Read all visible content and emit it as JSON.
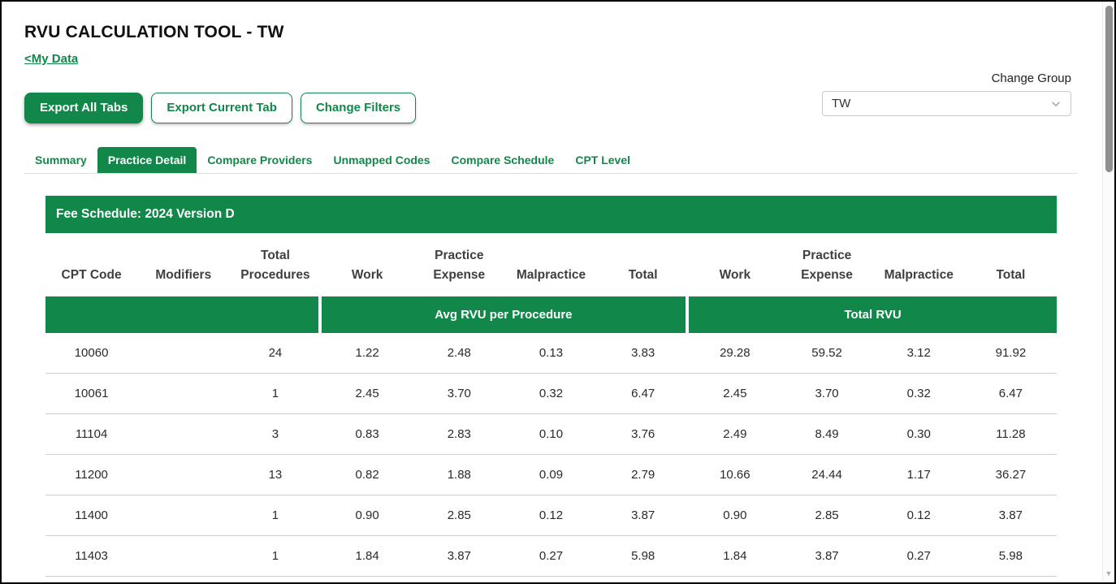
{
  "header": {
    "title": "RVU CALCULATION TOOL - TW",
    "back_link": "<My Data",
    "change_group_label": "Change Group",
    "group_select_value": "TW"
  },
  "toolbar": {
    "export_all_label": "Export All Tabs",
    "export_current_label": "Export Current Tab",
    "change_filters_label": "Change Filters"
  },
  "tabs": [
    {
      "label": "Summary",
      "active": false
    },
    {
      "label": "Practice Detail",
      "active": true
    },
    {
      "label": "Compare Providers",
      "active": false
    },
    {
      "label": "Unmapped Codes",
      "active": false
    },
    {
      "label": "Compare Schedule",
      "active": false
    },
    {
      "label": "CPT Level",
      "active": false
    }
  ],
  "table": {
    "banner": "Fee Schedule: 2024 Version D",
    "columns": [
      "CPT Code",
      "Modifiers",
      "Total Procedures",
      "Work",
      "Practice Expense",
      "Malpractice",
      "Total",
      "Work",
      "Practice Expense",
      "Malpractice",
      "Total"
    ],
    "group_headers": [
      {
        "label": "",
        "span": 3
      },
      {
        "label": "Avg RVU per Procedure",
        "span": 4
      },
      {
        "label": "Total RVU",
        "span": 4
      }
    ],
    "rows": [
      [
        "10060",
        "",
        "24",
        "1.22",
        "2.48",
        "0.13",
        "3.83",
        "29.28",
        "59.52",
        "3.12",
        "91.92"
      ],
      [
        "10061",
        "",
        "1",
        "2.45",
        "3.70",
        "0.32",
        "6.47",
        "2.45",
        "3.70",
        "0.32",
        "6.47"
      ],
      [
        "11104",
        "",
        "3",
        "0.83",
        "2.83",
        "0.10",
        "3.76",
        "2.49",
        "8.49",
        "0.30",
        "11.28"
      ],
      [
        "11200",
        "",
        "13",
        "0.82",
        "1.88",
        "0.09",
        "2.79",
        "10.66",
        "24.44",
        "1.17",
        "36.27"
      ],
      [
        "11400",
        "",
        "1",
        "0.90",
        "2.85",
        "0.12",
        "3.87",
        "0.90",
        "2.85",
        "0.12",
        "3.87"
      ],
      [
        "11403",
        "",
        "1",
        "1.84",
        "3.87",
        "0.27",
        "5.98",
        "1.84",
        "3.87",
        "0.27",
        "5.98"
      ]
    ]
  },
  "colors": {
    "green": "#12874a",
    "row_border": "#cfcfcf"
  }
}
